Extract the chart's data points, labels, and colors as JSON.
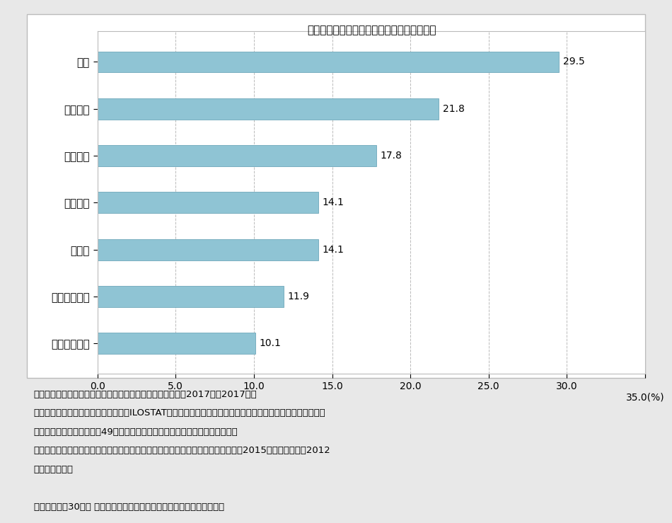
{
  "title": "男性就業者の長時間労働の割合（国際比較）",
  "categories": [
    "スウェーデン",
    "フィンランド",
    "ドイツ",
    "フランス",
    "イギリス",
    "アメリカ",
    "日本"
  ],
  "values": [
    10.1,
    11.9,
    14.1,
    14.1,
    17.8,
    21.8,
    29.5
  ],
  "bar_color": "#8FC4D4",
  "bar_edgecolor": "#7AAFC0",
  "xlim": [
    0,
    35
  ],
  "xticks": [
    0.0,
    5.0,
    10.0,
    15.0,
    20.0,
    25.0,
    30.0,
    35.0
  ],
  "xlabel_suffix": "35.0(%)",
  "grid_color": "#aaaaaa",
  "outer_bg_color": "#e8e8e8",
  "chart_bg_color": "#ffffff",
  "note_lines": [
    "資料：労働政策研究・研修機構「データブック国際労働比較2017」（2017年）",
    "　注：１．　ここでいう長時間とは、ILOSTATの労働時間別就業者統計において、上記掲載国に共通する最長",
    "　　　　　の区分である週49時間以上を指す。原則、全産業、就業者を対象。",
    "　　　２．　日本、フランス、イギリス、ドイツ、フィンランド、スウェーデンは2015年、アメリカは2012",
    "　　　　　年。",
    "",
    "出典：「平成30年度 少子化対策社会白書」（内閣府）より加工して作成"
  ],
  "title_fontsize": 11,
  "label_fontsize": 11,
  "tick_fontsize": 10,
  "note_fontsize": 9.5,
  "value_fontsize": 10
}
